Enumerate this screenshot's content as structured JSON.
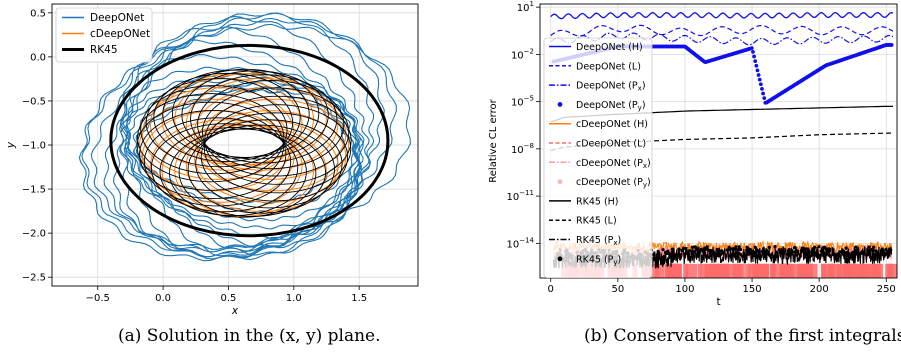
{
  "captions": {
    "a": "(a) Solution in the (x, y) plane.",
    "b": "(b) Conservation of the first integrals."
  },
  "colors": {
    "deeponet": "#1f77b4",
    "cdeeponet": "#ff7f0e",
    "rk45": "#000000",
    "dn_right": "#1010ee",
    "cdn_right": "#ff6a6a",
    "grid": "#d9d9d9"
  },
  "chart_data": [
    {
      "type": "line",
      "title": "",
      "xlabel": "x",
      "ylabel": "y",
      "xlim": [
        -0.85,
        1.95
      ],
      "ylim": [
        -2.6,
        0.6
      ],
      "xticks": [
        -0.5,
        0.0,
        0.5,
        1.0,
        1.5
      ],
      "xtick_labels": [
        "−0.5",
        "0.0",
        "0.5",
        "1.0",
        "1.5"
      ],
      "yticks": [
        0.5,
        0.0,
        -0.5,
        -1.0,
        -1.5,
        -2.0,
        -2.5
      ],
      "ytick_labels": [
        "0.5",
        "0.0",
        "−0.5",
        "−1.0",
        "−1.5",
        "−2.0",
        "−2.5"
      ],
      "grid": true,
      "legend_position": "top-left",
      "series": [
        {
          "name": "DeepONet",
          "color": "#1f77b4",
          "description": "spreading spiral orbits, x from -0.8 to 1.8, y from -2.5 to 0.5"
        },
        {
          "name": "cDeepONet",
          "color": "#ff7f0e",
          "description": "torus-like rosette, x from -0.3 to 1.5, y from -1.9 to -0.1"
        },
        {
          "name": "RK45",
          "color": "#000000",
          "description": "rosette of ellipses, x from -0.4 to 1.7, y from -2.05 to 0.15"
        }
      ]
    },
    {
      "type": "line",
      "title": "",
      "xlabel": "t",
      "ylabel": "Relative CL error",
      "xlim": [
        -8,
        258
      ],
      "ylim_log10": [
        -16.2,
        1.2
      ],
      "yscale": "log",
      "xticks": [
        0,
        50,
        100,
        150,
        200,
        250
      ],
      "xtick_labels": [
        "0",
        "50",
        "100",
        "150",
        "200",
        "250"
      ],
      "ytick_exponents": [
        1,
        -2,
        -5,
        -8,
        -11,
        -14
      ],
      "grid": true,
      "legend_position": "left",
      "legend_entries": [
        {
          "label": "DeepONet (H)",
          "color": "#1010ee",
          "style": "solid",
          "marker": false
        },
        {
          "label": "DeepONet (L)",
          "color": "#1010ee",
          "style": "dashed",
          "marker": false
        },
        {
          "label": "DeepONet (P",
          "sub": "x",
          "close": ")",
          "color": "#1010ee",
          "style": "dashdot",
          "marker": false
        },
        {
          "label": "DeepONet (P",
          "sub": "y",
          "close": ")",
          "color": "#1010ee",
          "style": "none",
          "marker": true
        },
        {
          "label": "cDeepONet (H)",
          "color": "#ff7f0e",
          "style": "solid",
          "marker": false
        },
        {
          "label": "cDeepONet (L)",
          "color": "#ff6a6a",
          "style": "dashed",
          "marker": false
        },
        {
          "label": "cDeepONet (P",
          "sub": "x",
          "close": ")",
          "color": "#ff9a9a",
          "style": "dashdot",
          "marker": false
        },
        {
          "label": "cDeepONet (P",
          "sub": "y",
          "close": ")",
          "color": "#ffb0b0",
          "style": "none",
          "marker": true
        },
        {
          "label": "RK45 (H)",
          "color": "#000000",
          "style": "solid",
          "marker": false
        },
        {
          "label": "RK45 (L)",
          "color": "#000000",
          "style": "dashed",
          "marker": false
        },
        {
          "label": "RK45 (P",
          "sub": "x",
          "close": ")",
          "color": "#000000",
          "style": "dashdot",
          "marker": false
        },
        {
          "label": "RK45 (P",
          "sub": "y",
          "close": ")",
          "color": "#000000",
          "style": "none",
          "marker": true
        }
      ],
      "series": [
        {
          "name": "DeepONet (H)",
          "t": [
            0,
            50,
            100,
            150,
            200,
            250
          ],
          "log10_error": [
            0.4,
            0.5,
            0.5,
            0.45,
            0.5,
            0.5
          ]
        },
        {
          "name": "DeepONet (L)",
          "t": [
            0,
            50,
            100,
            150,
            200,
            250
          ],
          "log10_error": [
            -0.8,
            -0.3,
            -0.6,
            -0.4,
            -0.5,
            -0.5
          ]
        },
        {
          "name": "DeepONet (Px)",
          "t": [
            0,
            50,
            100,
            150,
            200,
            250
          ],
          "log10_error": [
            -1.2,
            -0.8,
            -1.0,
            -1.2,
            -1.1,
            -1.0
          ]
        },
        {
          "name": "DeepONet (Py)",
          "t": [
            0,
            50,
            100,
            115,
            150,
            160,
            205,
            250
          ],
          "log10_error": [
            -2.5,
            -1.5,
            -1.5,
            -2.5,
            -1.6,
            -5.1,
            -2.7,
            -1.4
          ]
        },
        {
          "name": "RK45 (H)",
          "t": [
            0,
            10,
            50,
            100,
            150,
            200,
            250
          ],
          "log10_error": [
            -6.3,
            -6.0,
            -5.8,
            -5.6,
            -5.5,
            -5.4,
            -5.3
          ]
        },
        {
          "name": "RK45 (L)",
          "t": [
            0,
            10,
            50,
            100,
            150,
            200,
            250
          ],
          "log10_error": [
            -8.1,
            -7.9,
            -7.6,
            -7.4,
            -7.3,
            -7.1,
            -7.0
          ]
        }
      ]
    }
  ]
}
